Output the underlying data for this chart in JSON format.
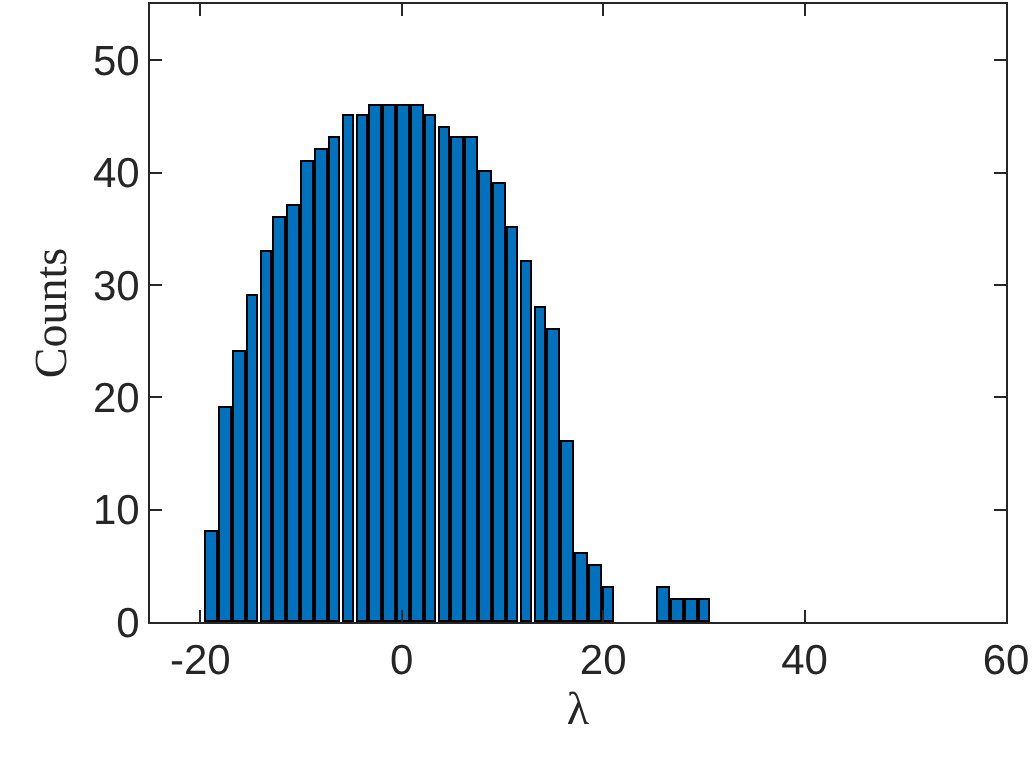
{
  "chart_data": {
    "type": "histogram",
    "xlabel": "λ",
    "ylabel": "Counts",
    "color": "#0072bd",
    "bins": [
      -19.52,
      -18.16,
      -16.8,
      -15.44,
      -14.08,
      -12.72,
      -11.36,
      -10.0,
      -8.64,
      -7.28,
      -5.92,
      -4.56,
      -3.2,
      -1.84,
      -0.48,
      0.88,
      2.24,
      3.6,
      4.96,
      6.32,
      7.68,
      9.04,
      10.4,
      11.76,
      13.12,
      14.48,
      15.84,
      17.2,
      18.56,
      19.92,
      21.28,
      22.64,
      24.0,
      25.36,
      26.72,
      28.08,
      29.44,
      30.8
    ],
    "values": [
      8,
      19,
      24,
      29,
      33,
      36,
      37,
      41,
      42,
      43,
      45,
      45,
      46,
      46,
      46,
      46,
      45,
      44,
      43,
      43,
      40,
      39,
      35,
      32,
      28,
      26,
      16,
      6,
      5,
      3,
      0,
      0,
      0,
      3,
      2,
      2,
      2
    ],
    "xlim": [
      -25,
      60
    ],
    "xticks": [
      -20,
      0,
      20,
      40,
      60
    ],
    "ylim": [
      0,
      55
    ],
    "yticks": [
      0,
      10,
      20,
      30,
      40,
      50
    ]
  }
}
